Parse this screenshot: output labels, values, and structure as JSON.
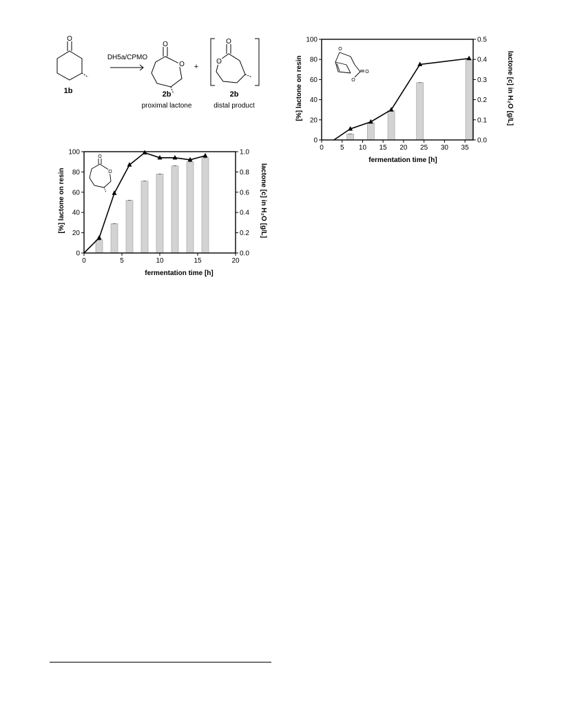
{
  "scheme": {
    "reactant_label": "1b",
    "reagent_label": "DH5a/CPMO",
    "plus_sign": "+",
    "product1_label": "2b",
    "product1_caption": "proximal lactone",
    "product2_label": "2b",
    "product2_caption": "distal product",
    "atom_o": "O"
  },
  "chart_data": [
    {
      "type": "bar+line",
      "xlabel": "fermentation time [h]",
      "ylabel_left": "[%] lactone on resin",
      "ylabel_right": "lactone [c] in H₂O [g/L]",
      "xlim": [
        0,
        20
      ],
      "ylim_left": [
        0,
        100
      ],
      "ylim_right": [
        0.0,
        1.0
      ],
      "x_ticks": [
        "0",
        "5",
        "10",
        "15",
        "20"
      ],
      "y_ticks_left": [
        "0",
        "20",
        "40",
        "60",
        "80",
        "100"
      ],
      "y_ticks_right": [
        "0.0",
        "0.2",
        "0.4",
        "0.6",
        "0.8",
        "1.0"
      ],
      "bars": {
        "x": [
          2,
          4,
          6,
          8,
          10,
          12,
          14,
          16
        ],
        "values": [
          13,
          29,
          52,
          71,
          78,
          86,
          90,
          94
        ]
      },
      "line": {
        "marker": "triangle",
        "x": [
          0,
          2,
          4,
          6,
          8,
          10,
          12,
          14,
          16
        ],
        "values": [
          0.0,
          0.15,
          0.59,
          0.87,
          0.99,
          0.94,
          0.94,
          0.92,
          0.96
        ]
      },
      "grid": false,
      "inset_structure": "proximal lactone 2b",
      "colors": {
        "bar": "#d3d3d3",
        "line": "#000000"
      }
    },
    {
      "type": "bar+line",
      "xlabel": "fermentation time [h]",
      "ylabel_left": "[%] lactone on resin",
      "ylabel_right": "lactone [c] in H₂O [g/L]",
      "xlim": [
        0,
        37
      ],
      "ylim_left": [
        0,
        100
      ],
      "ylim_right": [
        0.0,
        0.5
      ],
      "x_ticks": [
        "0",
        "5",
        "10",
        "15",
        "20",
        "25",
        "30",
        "35"
      ],
      "y_ticks_left": [
        "0",
        "20",
        "40",
        "60",
        "80",
        "100"
      ],
      "y_ticks_right": [
        "0.0",
        "0.1",
        "0.2",
        "0.3",
        "0.4",
        "0.5"
      ],
      "bars": {
        "x": [
          7,
          12,
          17,
          24,
          36
        ],
        "values": [
          6,
          17,
          29,
          57,
          80
        ]
      },
      "line": {
        "marker": "triangle",
        "x": [
          3,
          7,
          12,
          17,
          24,
          36
        ],
        "values": [
          0.0,
          0.055,
          0.09,
          0.15,
          0.375,
          0.405
        ]
      },
      "grid": false,
      "inset_structure": "bicyclic lactone",
      "colors": {
        "bar": "#d3d3d3",
        "line": "#000000"
      }
    }
  ]
}
